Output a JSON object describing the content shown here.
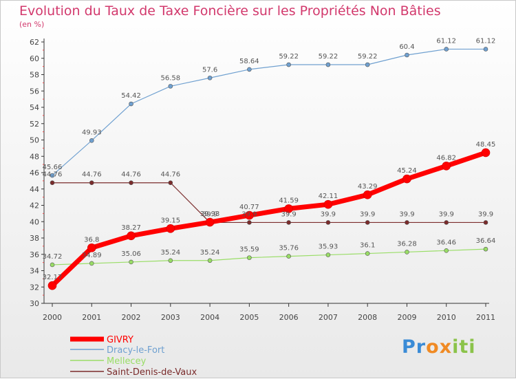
{
  "chart_data": {
    "type": "line",
    "title": "Evolution du Taux de Taxe Foncière sur les Propriétés Non Bâties",
    "subtitle": "(en %)",
    "categories": [
      "2000",
      "2001",
      "2002",
      "2003",
      "2004",
      "2005",
      "2006",
      "2007",
      "2008",
      "2009",
      "2010",
      "2011"
    ],
    "ylim": [
      30,
      62
    ],
    "y_ticks": [
      30,
      32,
      34,
      36,
      38,
      40,
      42,
      44,
      46,
      48,
      50,
      52,
      54,
      56,
      58,
      60,
      62
    ],
    "grid": false,
    "legend_position": "bottom-left",
    "series": [
      {
        "name": "GIVRY",
        "color": "#ff0000",
        "values": [
          32.17,
          36.8,
          38.27,
          39.15,
          39.93,
          40.77,
          41.59,
          42.11,
          43.29,
          45.24,
          46.82,
          48.45
        ],
        "labels": [
          "32.17",
          "36.8",
          "38.27",
          "39.15",
          "39.93",
          "40.77",
          "41.59",
          "42.11",
          "43.29",
          "45.24",
          "46.82",
          "48.45"
        ]
      },
      {
        "name": "Dracy-le-Fort",
        "color": "#6fa0d0",
        "values": [
          45.66,
          49.93,
          54.42,
          56.58,
          57.6,
          58.64,
          59.22,
          59.22,
          59.22,
          60.4,
          61.12,
          61.12
        ],
        "labels": [
          "45.66",
          "49.93",
          "54.42",
          "56.58",
          "57.6",
          "58.64",
          "59.22",
          "59.22",
          "59.22",
          "60.4",
          "61.12",
          "61.12"
        ]
      },
      {
        "name": "Mellecey",
        "color": "#99dd66",
        "values": [
          34.72,
          34.89,
          35.06,
          35.24,
          35.24,
          35.59,
          35.76,
          35.93,
          36.1,
          36.28,
          36.46,
          36.64
        ],
        "labels": [
          "34.72",
          "34.89",
          "35.06",
          "35.24",
          "35.24",
          "35.59",
          "35.76",
          "35.93",
          "36.1",
          "36.28",
          "36.46",
          "36.64"
        ]
      },
      {
        "name": "Saint-Denis-de-Vaux",
        "color": "#7a2b2b",
        "values": [
          44.76,
          44.76,
          44.76,
          44.76,
          39.9,
          39.9,
          39.9,
          39.9,
          39.9,
          39.9,
          39.9,
          39.9
        ],
        "labels": [
          "44.76",
          "44.76",
          "44.76",
          "44.76",
          "39.9",
          "39.9",
          "39.9",
          "39.9",
          "39.9",
          "39.9",
          "39.9",
          "39.9"
        ]
      }
    ]
  },
  "logo": {
    "letters": [
      "P",
      "r",
      "o",
      "x",
      "i",
      "t",
      "i"
    ],
    "colors": [
      "#3a8bd6",
      "#3a8bd6",
      "#f08a24",
      "#f08a24",
      "#8bc34a",
      "#8bc34a",
      "#8bc34a"
    ]
  }
}
